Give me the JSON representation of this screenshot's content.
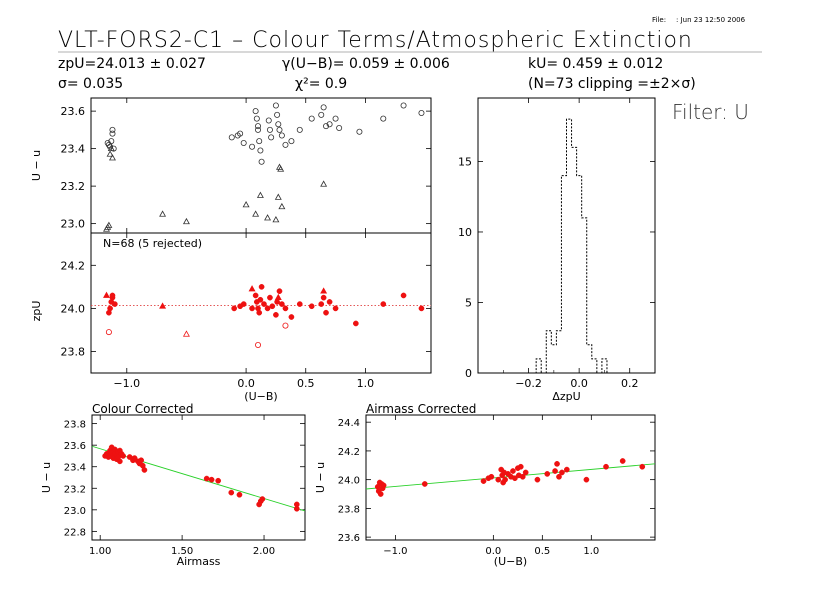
{
  "header": {
    "file_label": "File:",
    "file_date": ": Jun 23 12:50 2006",
    "title": "VLT-FORS2-C1 – Colour Terms/Atmospheric Extinction",
    "zp": "zpU=24.013 ± 0.027",
    "sigma": "σ= 0.035",
    "gamma": "γ(U−B)= 0.059 ± 0.006",
    "chi2": "χ²= 0.9",
    "k": "kU= 0.459 ± 0.012",
    "clipping": "(N=73 clipping =±2×σ)",
    "filter": "Filter: U"
  },
  "chart_data": [
    {
      "id": "top-left",
      "type": "scatter",
      "ylabel": "U − u",
      "xlim": [
        -1.3,
        1.55
      ],
      "ylim": [
        22.95,
        23.67
      ],
      "yticks": [
        23.0,
        23.2,
        23.4,
        23.6
      ],
      "series": [
        {
          "marker": "circle",
          "points": [
            [
              -1.16,
              23.43
            ],
            [
              -1.15,
              23.42
            ],
            [
              -1.14,
              23.41
            ],
            [
              -1.13,
              23.44
            ],
            [
              -1.12,
              23.48
            ],
            [
              -1.12,
              23.5
            ],
            [
              -1.11,
              23.4
            ],
            [
              -0.12,
              23.46
            ],
            [
              -0.07,
              23.47
            ],
            [
              -0.05,
              23.48
            ],
            [
              -0.02,
              23.43
            ],
            [
              0.05,
              23.41
            ],
            [
              0.08,
              23.6
            ],
            [
              0.09,
              23.56
            ],
            [
              0.1,
              23.52
            ],
            [
              0.1,
              23.5
            ],
            [
              0.11,
              23.44
            ],
            [
              0.12,
              23.39
            ],
            [
              0.13,
              23.33
            ],
            [
              0.19,
              23.55
            ],
            [
              0.2,
              23.5
            ],
            [
              0.21,
              23.46
            ],
            [
              0.25,
              23.63
            ],
            [
              0.26,
              23.58
            ],
            [
              0.27,
              23.53
            ],
            [
              0.28,
              23.5
            ],
            [
              0.3,
              23.47
            ],
            [
              0.33,
              23.42
            ],
            [
              0.38,
              23.44
            ],
            [
              0.45,
              23.5
            ],
            [
              0.55,
              23.56
            ],
            [
              0.63,
              23.58
            ],
            [
              0.65,
              23.62
            ],
            [
              0.67,
              23.52
            ],
            [
              0.7,
              23.53
            ],
            [
              0.75,
              23.56
            ],
            [
              0.78,
              23.51
            ],
            [
              0.95,
              23.49
            ],
            [
              1.15,
              23.56
            ],
            [
              1.32,
              23.63
            ],
            [
              1.47,
              23.59
            ]
          ]
        },
        {
          "marker": "triangle",
          "points": [
            [
              -1.17,
              22.97
            ],
            [
              -1.16,
              22.98
            ],
            [
              -1.15,
              22.99
            ],
            [
              -1.14,
              23.37
            ],
            [
              -1.13,
              23.4
            ],
            [
              -1.12,
              23.35
            ],
            [
              -0.7,
              23.05
            ],
            [
              -0.5,
              23.01
            ],
            [
              0.0,
              23.1
            ],
            [
              0.08,
              23.05
            ],
            [
              0.12,
              23.15
            ],
            [
              0.18,
              23.03
            ],
            [
              0.25,
              23.02
            ],
            [
              0.27,
              23.14
            ],
            [
              0.28,
              23.3
            ],
            [
              0.29,
              23.29
            ],
            [
              0.3,
              23.09
            ],
            [
              0.65,
              23.21
            ]
          ]
        }
      ]
    },
    {
      "id": "middle-left",
      "type": "scatter",
      "label": "N=68 (5 rejected)",
      "ylabel": "zpU",
      "xlabel": "(U−B)",
      "xlim": [
        -1.3,
        1.55
      ],
      "ylim": [
        23.7,
        24.35
      ],
      "yticks": [
        23.8,
        24.0,
        24.2
      ],
      "xticks": [
        -1.0,
        0.0,
        0.5,
        1.0
      ],
      "xticklabels": [
        "−1.0",
        "0.0",
        "0.5",
        "1.0"
      ],
      "reference_y": 24.013,
      "series": [
        {
          "marker": "filled-circle",
          "points": [
            [
              -1.15,
              23.98
            ],
            [
              -1.14,
              24.0
            ],
            [
              -1.13,
              24.03
            ],
            [
              -1.12,
              24.05
            ],
            [
              -1.12,
              24.06
            ],
            [
              -1.1,
              24.02
            ],
            [
              -0.1,
              24.0
            ],
            [
              -0.05,
              24.01
            ],
            [
              -0.02,
              24.02
            ],
            [
              0.05,
              24.0
            ],
            [
              0.08,
              24.06
            ],
            [
              0.09,
              24.03
            ],
            [
              0.1,
              24.0
            ],
            [
              0.11,
              23.98
            ],
            [
              0.12,
              24.04
            ],
            [
              0.13,
              24.1
            ],
            [
              0.15,
              24.02
            ],
            [
              0.18,
              24.0
            ],
            [
              0.2,
              24.05
            ],
            [
              0.22,
              24.01
            ],
            [
              0.25,
              23.97
            ],
            [
              0.26,
              24.03
            ],
            [
              0.28,
              24.08
            ],
            [
              0.3,
              24.02
            ],
            [
              0.33,
              24.0
            ],
            [
              0.38,
              23.96
            ],
            [
              0.45,
              24.02
            ],
            [
              0.55,
              24.01
            ],
            [
              0.63,
              24.02
            ],
            [
              0.65,
              24.05
            ],
            [
              0.67,
              23.98
            ],
            [
              0.7,
              24.03
            ],
            [
              0.75,
              24.0
            ],
            [
              0.92,
              23.93
            ],
            [
              1.15,
              24.02
            ],
            [
              1.32,
              24.06
            ],
            [
              1.47,
              24.0
            ]
          ]
        },
        {
          "marker": "filled-triangle",
          "points": [
            [
              -1.17,
              24.06
            ],
            [
              -0.7,
              24.01
            ],
            [
              0.05,
              24.09
            ],
            [
              0.27,
              24.05
            ],
            [
              0.65,
              24.08
            ]
          ]
        },
        {
          "marker": "open-circle",
          "points": [
            [
              -1.15,
              23.89
            ],
            [
              0.1,
              23.83
            ],
            [
              0.33,
              23.92
            ]
          ]
        },
        {
          "marker": "open-triangle",
          "points": [
            [
              -0.5,
              23.88
            ]
          ]
        }
      ]
    },
    {
      "id": "histogram",
      "type": "bar",
      "xlabel": "ΔzpU",
      "xlim": [
        -0.4,
        0.3
      ],
      "ylim": [
        0,
        19.5
      ],
      "xticks": [
        -0.2,
        0.0,
        0.2
      ],
      "xticklabels": [
        "−0.2",
        "0.0",
        "0.2"
      ],
      "yticks": [
        0,
        5,
        10,
        15
      ],
      "bin_edges": [
        -0.38,
        -0.17,
        -0.15,
        -0.13,
        -0.11,
        -0.09,
        -0.07,
        -0.05,
        -0.03,
        -0.01,
        0.01,
        0.03,
        0.05,
        0.07,
        0.09,
        0.11,
        0.13,
        0.3
      ],
      "counts": [
        0,
        1,
        0,
        3,
        2,
        3,
        14,
        18,
        16,
        14,
        11,
        2,
        1,
        0,
        1,
        0,
        0
      ]
    },
    {
      "id": "colour-corrected",
      "type": "scatter",
      "title": "Colour Corrected",
      "xlabel": "Airmass",
      "ylabel": "U − u",
      "xlim": [
        0.95,
        2.25
      ],
      "ylim": [
        22.72,
        23.88
      ],
      "xticks": [
        1.0,
        1.5,
        2.0
      ],
      "xticklabels": [
        "1.00",
        "1.50",
        "2.00"
      ],
      "yticks": [
        22.8,
        23.0,
        23.2,
        23.4,
        23.6,
        23.8
      ],
      "fit_line": [
        [
          0.95,
          23.59
        ],
        [
          2.25,
          22.99
        ]
      ],
      "points": [
        [
          1.03,
          23.5
        ],
        [
          1.04,
          23.52
        ],
        [
          1.05,
          23.49
        ],
        [
          1.06,
          23.55
        ],
        [
          1.06,
          23.5
        ],
        [
          1.07,
          23.58
        ],
        [
          1.07,
          23.53
        ],
        [
          1.08,
          23.51
        ],
        [
          1.08,
          23.48
        ],
        [
          1.09,
          23.56
        ],
        [
          1.09,
          23.52
        ],
        [
          1.1,
          23.5
        ],
        [
          1.1,
          23.47
        ],
        [
          1.11,
          23.54
        ],
        [
          1.11,
          23.49
        ],
        [
          1.12,
          23.55
        ],
        [
          1.12,
          23.45
        ],
        [
          1.13,
          23.52
        ],
        [
          1.14,
          23.5
        ],
        [
          1.18,
          23.49
        ],
        [
          1.2,
          23.46
        ],
        [
          1.21,
          23.48
        ],
        [
          1.23,
          23.45
        ],
        [
          1.24,
          23.43
        ],
        [
          1.25,
          23.46
        ],
        [
          1.26,
          23.41
        ],
        [
          1.27,
          23.37
        ],
        [
          1.65,
          23.29
        ],
        [
          1.68,
          23.28
        ],
        [
          1.72,
          23.27
        ],
        [
          1.8,
          23.16
        ],
        [
          1.85,
          23.14
        ],
        [
          1.97,
          23.05
        ],
        [
          1.98,
          23.08
        ],
        [
          1.99,
          23.1
        ],
        [
          2.2,
          23.01
        ],
        [
          2.2,
          23.05
        ]
      ]
    },
    {
      "id": "airmass-corrected",
      "type": "scatter",
      "title": "Airmass Corrected",
      "xlabel": "(U−B)",
      "ylabel": "U − u",
      "xlim": [
        -1.3,
        1.65
      ],
      "ylim": [
        23.58,
        24.45
      ],
      "xticks": [
        -1.0,
        0.0,
        0.5,
        1.0
      ],
      "xticklabels": [
        "−1.0",
        "0.0",
        "0.5",
        "1.0"
      ],
      "yticks": [
        23.6,
        23.8,
        24.0,
        24.2,
        24.4
      ],
      "fit_line": [
        [
          -1.3,
          23.935
        ],
        [
          1.65,
          24.11
        ]
      ],
      "points": [
        [
          -1.18,
          23.95
        ],
        [
          -1.17,
          23.92
        ],
        [
          -1.16,
          23.98
        ],
        [
          -1.15,
          23.9
        ],
        [
          -1.14,
          23.97
        ],
        [
          -1.13,
          23.94
        ],
        [
          -1.12,
          23.96
        ],
        [
          -0.7,
          23.97
        ],
        [
          -0.1,
          23.99
        ],
        [
          -0.05,
          24.01
        ],
        [
          -0.02,
          24.02
        ],
        [
          0.05,
          24.0
        ],
        [
          0.08,
          24.07
        ],
        [
          0.09,
          24.03
        ],
        [
          0.1,
          23.98
        ],
        [
          0.11,
          24.05
        ],
        [
          0.12,
          24.0
        ],
        [
          0.15,
          24.04
        ],
        [
          0.18,
          24.02
        ],
        [
          0.2,
          24.06
        ],
        [
          0.22,
          24.01
        ],
        [
          0.25,
          24.08
        ],
        [
          0.26,
          24.03
        ],
        [
          0.28,
          24.09
        ],
        [
          0.3,
          24.02
        ],
        [
          0.33,
          24.05
        ],
        [
          0.45,
          24.0
        ],
        [
          0.55,
          24.04
        ],
        [
          0.63,
          24.06
        ],
        [
          0.65,
          24.11
        ],
        [
          0.67,
          24.02
        ],
        [
          0.7,
          24.05
        ],
        [
          0.75,
          24.07
        ],
        [
          0.95,
          24.0
        ],
        [
          1.15,
          24.09
        ],
        [
          1.32,
          24.13
        ],
        [
          1.52,
          24.09
        ]
      ]
    }
  ]
}
